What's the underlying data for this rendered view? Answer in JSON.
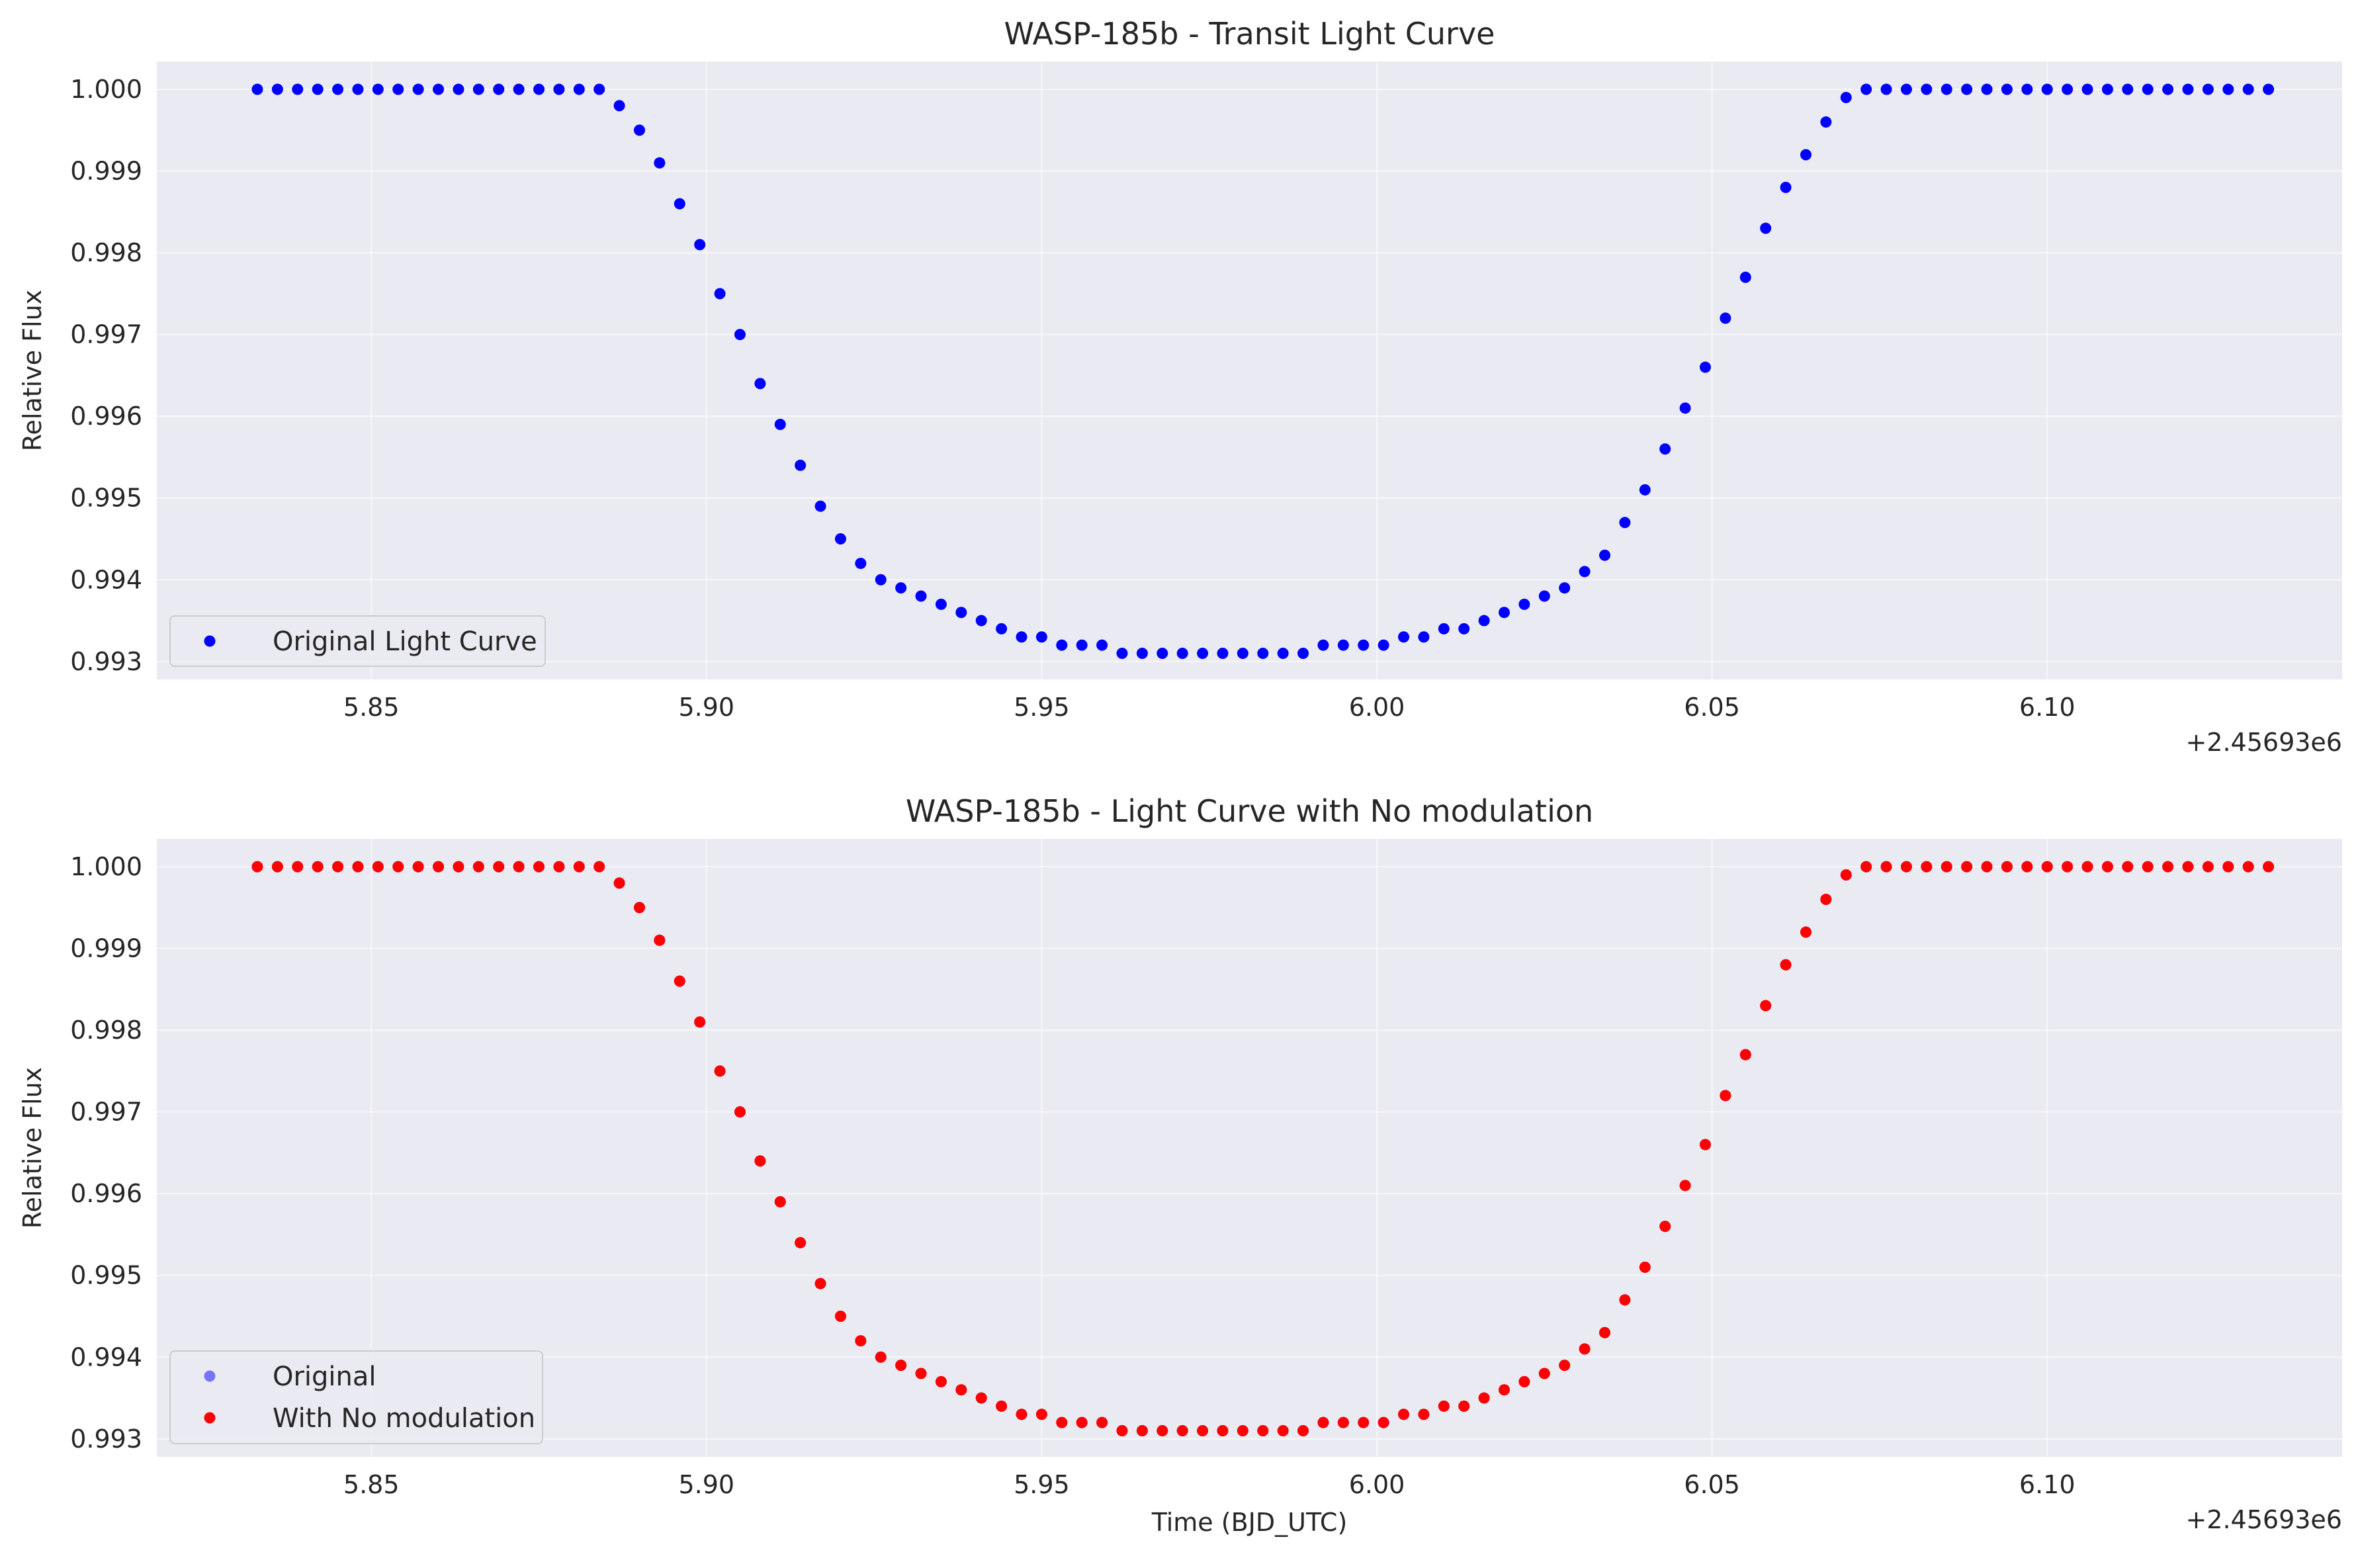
{
  "chart_data": [
    {
      "type": "scatter",
      "title": "WASP-185b - Transit Light Curve",
      "xlabel": "",
      "ylabel": "Relative Flux",
      "x_offset_label": "+2.45693e6",
      "x_offset": 2456930,
      "xlim": [
        5.818,
        6.144
      ],
      "ylim": [
        0.99278,
        1.00034
      ],
      "xticks": [
        5.85,
        5.9,
        5.95,
        6.0,
        6.05,
        6.1
      ],
      "xtick_labels": [
        "5.85",
        "5.90",
        "5.95",
        "6.00",
        "6.05",
        "6.10"
      ],
      "yticks": [
        0.993,
        0.994,
        0.995,
        0.996,
        0.997,
        0.998,
        0.999,
        1.0
      ],
      "ytick_labels": [
        "0.993",
        "0.994",
        "0.995",
        "0.996",
        "0.997",
        "0.998",
        "0.999",
        "1.000"
      ],
      "grid": true,
      "legend_position": "lower-left",
      "series": [
        {
          "name": "Original Light Curve",
          "color": "#0000ff",
          "x_start": 5.833,
          "x_step": 0.003,
          "count": 101,
          "y": [
            1.0,
            1.0,
            1.0,
            1.0,
            1.0,
            1.0,
            1.0,
            1.0,
            1.0,
            1.0,
            1.0,
            1.0,
            1.0,
            1.0,
            1.0,
            1.0,
            1.0,
            1.0,
            0.9998,
            0.9995,
            0.9991,
            0.9986,
            0.9981,
            0.9975,
            0.997,
            0.9964,
            0.9959,
            0.9954,
            0.9949,
            0.9945,
            0.9942,
            0.994,
            0.9939,
            0.9938,
            0.9937,
            0.9936,
            0.9935,
            0.9934,
            0.9933,
            0.9933,
            0.9932,
            0.9932,
            0.9932,
            0.9931,
            0.9931,
            0.9931,
            0.9931,
            0.9931,
            0.9931,
            0.9931,
            0.9931,
            0.9931,
            0.9931,
            0.9932,
            0.9932,
            0.9932,
            0.9932,
            0.9933,
            0.9933,
            0.9934,
            0.9934,
            0.9935,
            0.9936,
            0.9937,
            0.9938,
            0.9939,
            0.9941,
            0.9943,
            0.9947,
            0.9951,
            0.9956,
            0.9961,
            0.9966,
            0.9972,
            0.9977,
            0.9983,
            0.9988,
            0.9992,
            0.9996,
            0.9999,
            1.0,
            1.0,
            1.0,
            1.0,
            1.0,
            1.0,
            1.0,
            1.0,
            1.0,
            1.0,
            1.0,
            1.0,
            1.0,
            1.0,
            1.0,
            1.0,
            1.0,
            1.0,
            1.0,
            1.0,
            1.0
          ]
        }
      ]
    },
    {
      "type": "scatter",
      "title": "WASP-185b - Light Curve with No modulation",
      "xlabel": "Time (BJD_UTC)",
      "ylabel": "Relative Flux",
      "x_offset_label": "+2.45693e6",
      "x_offset": 2456930,
      "xlim": [
        5.818,
        6.144
      ],
      "ylim": [
        0.99278,
        1.00034
      ],
      "xticks": [
        5.85,
        5.9,
        5.95,
        6.0,
        6.05,
        6.1
      ],
      "xtick_labels": [
        "5.85",
        "5.90",
        "5.95",
        "6.00",
        "6.05",
        "6.10"
      ],
      "yticks": [
        0.993,
        0.994,
        0.995,
        0.996,
        0.997,
        0.998,
        0.999,
        1.0
      ],
      "ytick_labels": [
        "0.993",
        "0.994",
        "0.995",
        "0.996",
        "0.997",
        "0.998",
        "0.999",
        "1.000"
      ],
      "grid": true,
      "legend_position": "lower-left",
      "series": [
        {
          "name": "Original",
          "color": "#0000ff",
          "alpha": 0.5,
          "x_start": 5.833,
          "x_step": 0.003,
          "count": 101,
          "y": [
            1.0,
            1.0,
            1.0,
            1.0,
            1.0,
            1.0,
            1.0,
            1.0,
            1.0,
            1.0,
            1.0,
            1.0,
            1.0,
            1.0,
            1.0,
            1.0,
            1.0,
            1.0,
            0.9998,
            0.9995,
            0.9991,
            0.9986,
            0.9981,
            0.9975,
            0.997,
            0.9964,
            0.9959,
            0.9954,
            0.9949,
            0.9945,
            0.9942,
            0.994,
            0.9939,
            0.9938,
            0.9937,
            0.9936,
            0.9935,
            0.9934,
            0.9933,
            0.9933,
            0.9932,
            0.9932,
            0.9932,
            0.9931,
            0.9931,
            0.9931,
            0.9931,
            0.9931,
            0.9931,
            0.9931,
            0.9931,
            0.9931,
            0.9931,
            0.9932,
            0.9932,
            0.9932,
            0.9932,
            0.9933,
            0.9933,
            0.9934,
            0.9934,
            0.9935,
            0.9936,
            0.9937,
            0.9938,
            0.9939,
            0.9941,
            0.9943,
            0.9947,
            0.9951,
            0.9956,
            0.9961,
            0.9966,
            0.9972,
            0.9977,
            0.9983,
            0.9988,
            0.9992,
            0.9996,
            0.9999,
            1.0,
            1.0,
            1.0,
            1.0,
            1.0,
            1.0,
            1.0,
            1.0,
            1.0,
            1.0,
            1.0,
            1.0,
            1.0,
            1.0,
            1.0,
            1.0,
            1.0,
            1.0,
            1.0,
            1.0,
            1.0
          ]
        },
        {
          "name": "With No modulation",
          "color": "#ff0000",
          "x_start": 5.833,
          "x_step": 0.003,
          "count": 101,
          "y": [
            1.0,
            1.0,
            1.0,
            1.0,
            1.0,
            1.0,
            1.0,
            1.0,
            1.0,
            1.0,
            1.0,
            1.0,
            1.0,
            1.0,
            1.0,
            1.0,
            1.0,
            1.0,
            0.9998,
            0.9995,
            0.9991,
            0.9986,
            0.9981,
            0.9975,
            0.997,
            0.9964,
            0.9959,
            0.9954,
            0.9949,
            0.9945,
            0.9942,
            0.994,
            0.9939,
            0.9938,
            0.9937,
            0.9936,
            0.9935,
            0.9934,
            0.9933,
            0.9933,
            0.9932,
            0.9932,
            0.9932,
            0.9931,
            0.9931,
            0.9931,
            0.9931,
            0.9931,
            0.9931,
            0.9931,
            0.9931,
            0.9931,
            0.9931,
            0.9932,
            0.9932,
            0.9932,
            0.9932,
            0.9933,
            0.9933,
            0.9934,
            0.9934,
            0.9935,
            0.9936,
            0.9937,
            0.9938,
            0.9939,
            0.9941,
            0.9943,
            0.9947,
            0.9951,
            0.9956,
            0.9961,
            0.9966,
            0.9972,
            0.9977,
            0.9983,
            0.9988,
            0.9992,
            0.9996,
            0.9999,
            1.0,
            1.0,
            1.0,
            1.0,
            1.0,
            1.0,
            1.0,
            1.0,
            1.0,
            1.0,
            1.0,
            1.0,
            1.0,
            1.0,
            1.0,
            1.0,
            1.0,
            1.0,
            1.0,
            1.0,
            1.0
          ]
        }
      ]
    }
  ]
}
